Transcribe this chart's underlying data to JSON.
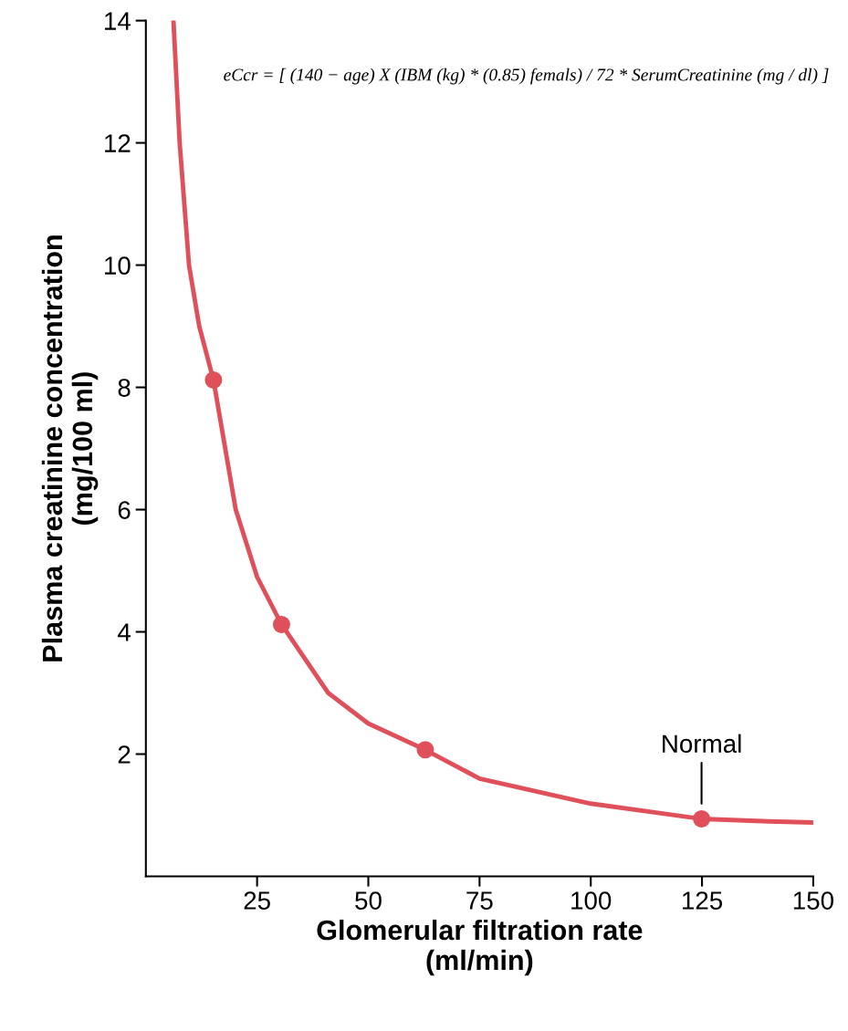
{
  "chart_data": {
    "type": "line",
    "xlabel": "Glomerular filtration rate\n(ml/min)",
    "ylabel": "Plasma creatinine concentration\n(mg/100 ml)",
    "xlim": [
      0,
      150
    ],
    "ylim": [
      0,
      14
    ],
    "xticks": [
      25,
      50,
      75,
      100,
      125,
      150
    ],
    "yticks": [
      2,
      4,
      6,
      8,
      10,
      12,
      14
    ],
    "grid": false,
    "series": [
      {
        "color": "#e0505a",
        "marker": "none",
        "x": [
          6.2,
          7.6,
          9.7,
          12,
          15.2,
          20.2,
          25,
          30.5,
          41,
          50,
          62.8,
          75,
          100,
          124.9,
          140,
          150
        ],
        "values": [
          14,
          12,
          10,
          9,
          8.12,
          6,
          4.9,
          4.12,
          3,
          2.5,
          2.07,
          1.6,
          1.19,
          0.94,
          0.9,
          0.88
        ]
      },
      {
        "type": "scatter",
        "color": "#e0505a",
        "marker": "circle",
        "x": [
          15.2,
          30.5,
          62.8,
          124.9
        ],
        "values": [
          8.12,
          4.12,
          2.07,
          0.94
        ]
      }
    ],
    "annotations": [
      "eCcr = [ (140 − age) X (IBM (kg) * (0.85) femals) / 72 * SerumCreatinine (mg / dl) ]",
      {
        "text": "Normal",
        "x": 124.9,
        "y": 0.94
      }
    ]
  }
}
